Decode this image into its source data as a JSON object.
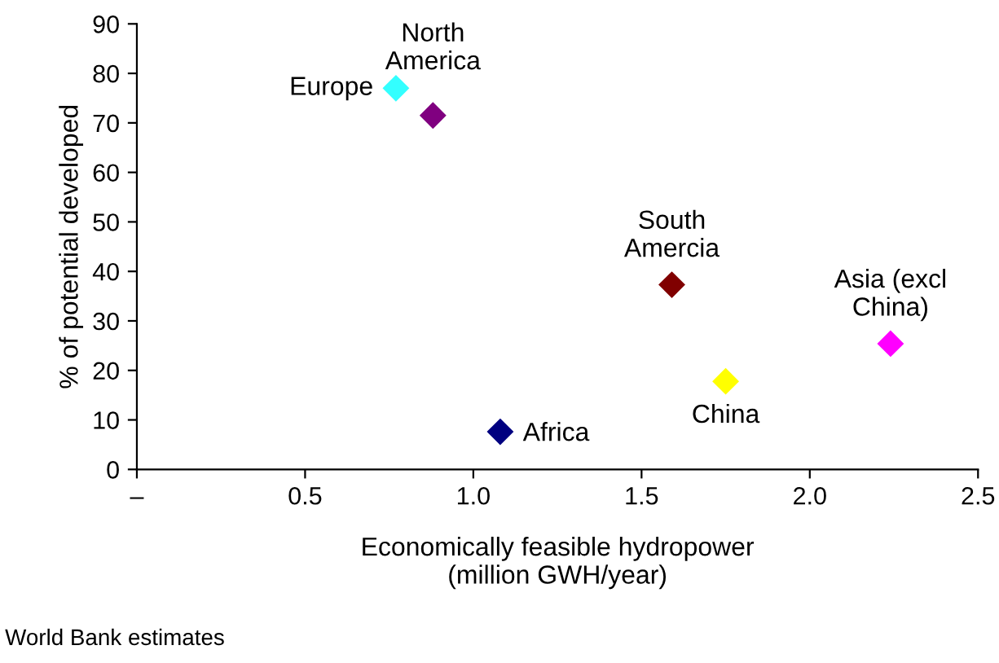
{
  "chart_data": {
    "type": "scatter",
    "xlabel": "Economically feasible hydropower\n(million GWH/year)",
    "ylabel": "% of potential developed",
    "x": [
      0.77,
      0.88,
      1.08,
      1.59,
      1.75,
      2.24
    ],
    "values": [
      77,
      71.5,
      7.6,
      37.3,
      17.8,
      25.4
    ],
    "colors": [
      "#33ffff",
      "#800080",
      "#000080",
      "#800000",
      "#ffff00",
      "#ff00ff"
    ],
    "marker": "diamond",
    "grid": false,
    "legend": false,
    "xlim": [
      0,
      2.5
    ],
    "ylim": [
      0,
      90
    ],
    "xticks": [
      {
        "value": 0,
        "label": "–"
      },
      0.5,
      {
        "value": 1,
        "label": "1.0"
      },
      1.5,
      {
        "value": 2,
        "label": "2.0"
      },
      2.5
    ],
    "yticks": [
      0,
      10,
      20,
      30,
      40,
      50,
      60,
      70,
      80,
      90
    ],
    "annotations": [
      {
        "text": "Europe",
        "x": 0.77,
        "y": 77
      },
      {
        "text": "North\nAmerica",
        "x": 0.88,
        "y": 71.5
      },
      {
        "text": "Africa",
        "x": 1.08,
        "y": 7.6
      },
      {
        "text": "South\nAmercia",
        "x": 1.59,
        "y": 37.3
      },
      {
        "text": "China",
        "x": 1.75,
        "y": 17.8
      },
      {
        "text": "Asia (excl\nChina)",
        "x": 2.24,
        "y": 25.4
      },
      "World Bank estimates"
    ]
  }
}
